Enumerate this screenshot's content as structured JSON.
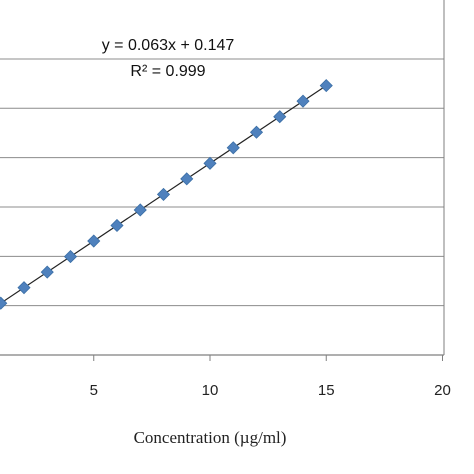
{
  "chart_data": {
    "type": "scatter",
    "title": "",
    "xlabel": "Concentration (µg/ml)",
    "ylabel": "",
    "xlim": [
      0,
      20
    ],
    "ylim": [
      0,
      1.2
    ],
    "x_ticks": [
      "5",
      "10",
      "15",
      "20"
    ],
    "grid": "horizontal",
    "legend": "none",
    "marker_color": "#4F81BD",
    "trendline": {
      "slope": 0.063,
      "intercept": 0.147
    },
    "annotations": {
      "equation": "y = 0.063x + 0.147",
      "r_squared": "R² = 0.999"
    },
    "series": [
      {
        "x": [
          1,
          2,
          3,
          4,
          5,
          6,
          7,
          8,
          9,
          10,
          11,
          12,
          13,
          14,
          15
        ],
        "y": [
          0.21,
          0.273,
          0.336,
          0.399,
          0.462,
          0.525,
          0.588,
          0.651,
          0.714,
          0.777,
          0.84,
          0.903,
          0.966,
          1.029,
          1.092
        ]
      }
    ]
  }
}
